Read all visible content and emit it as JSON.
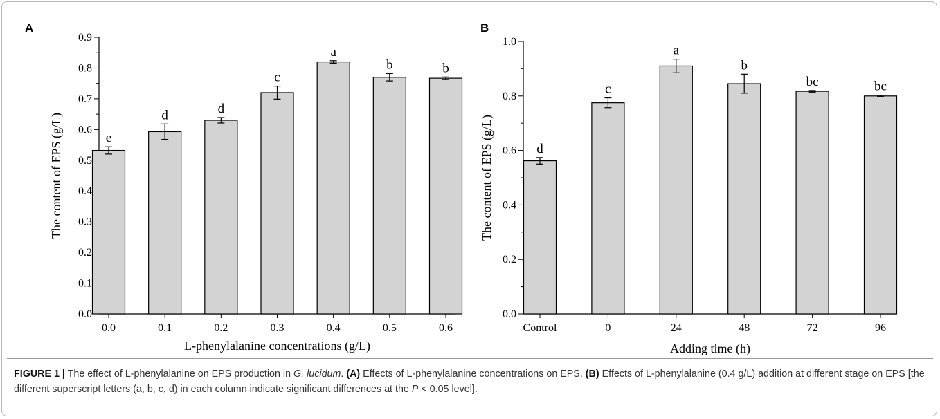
{
  "chart_data": [
    {
      "panel": "A",
      "type": "bar",
      "categories": [
        "0.0",
        "0.1",
        "0.2",
        "0.3",
        "0.4",
        "0.5",
        "0.6"
      ],
      "values": [
        0.532,
        0.593,
        0.63,
        0.72,
        0.82,
        0.77,
        0.767
      ],
      "errors": [
        0.012,
        0.025,
        0.009,
        0.021,
        0.004,
        0.012,
        0.004
      ],
      "significance_letters": [
        "e",
        "d",
        "d",
        "c",
        "a",
        "b",
        "b"
      ],
      "ylabel": "The content of EPS (g/L)",
      "xlabel": "L-phenylalanine concentrations (g/L)",
      "ylim": [
        0,
        0.9
      ],
      "yticks": [
        "0.0",
        "0.1",
        "0.2",
        "0.3",
        "0.4",
        "0.5",
        "0.6",
        "0.7",
        "0.8",
        "0.9"
      ],
      "grid": false,
      "bar_color": "#d3d3d3"
    },
    {
      "panel": "B",
      "type": "bar",
      "categories": [
        "Control",
        "0",
        "24",
        "48",
        "72",
        "96"
      ],
      "values": [
        0.562,
        0.775,
        0.91,
        0.845,
        0.817,
        0.8
      ],
      "errors": [
        0.012,
        0.018,
        0.025,
        0.035,
        0.003,
        0.003
      ],
      "significance_letters": [
        "d",
        "c",
        "a",
        "b",
        "bc",
        "bc"
      ],
      "ylabel": "The content of EPS (g/L)",
      "xlabel": "Adding time (h)",
      "ylim": [
        0,
        1.0
      ],
      "yticks": [
        "0.0",
        "0.2",
        "0.4",
        "0.6",
        "0.8",
        "1.0"
      ],
      "grid": false,
      "bar_color": "#d3d3d3"
    }
  ],
  "caption": {
    "figure_label": "FIGURE 1 |",
    "text_1": " The effect of L-phenylalanine on EPS production in ",
    "species": "G. lucidum",
    "text_2": ". ",
    "label_a": "(A)",
    "text_3": " Effects of L-phenylalanine concentrations on EPS. ",
    "label_b": "(B)",
    "text_4": " Effects of L-phenylalanine (0.4 g/L) addition at different stage on EPS [the different superscript letters (a, b, c, d) in each column indicate significant differences at the ",
    "p_symbol": "P",
    "text_5": " < 0.05 level]."
  }
}
